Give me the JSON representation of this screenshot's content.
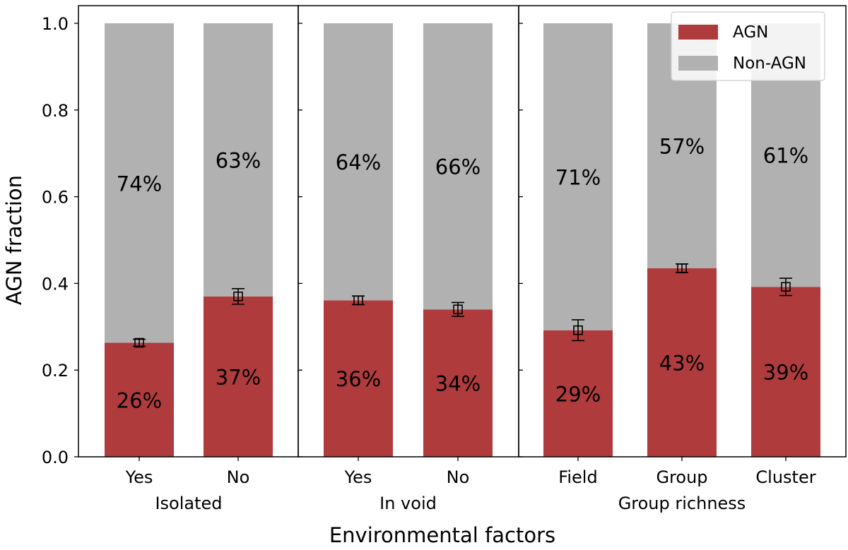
{
  "chart_data": {
    "type": "bar",
    "stacked": true,
    "ylabel": "AGN fraction",
    "xlabel": "Environmental factors",
    "ylim": [
      0,
      1
    ],
    "yticks": [
      "0.0",
      "0.2",
      "0.4",
      "0.6",
      "0.8",
      "1.0"
    ],
    "legend": {
      "position": "top-right",
      "entries": [
        {
          "label": "AGN",
          "color": "#b03b3d"
        },
        {
          "label": "Non-AGN",
          "color": "#b1b1b1"
        }
      ]
    },
    "panels": [
      {
        "group_label": "Isolated",
        "bars": [
          {
            "category": "Yes",
            "agn": 0.263,
            "agn_err": 0.008,
            "agn_label": "26%",
            "non_agn_label": "74%"
          },
          {
            "category": "No",
            "agn": 0.37,
            "agn_err": 0.018,
            "agn_label": "37%",
            "non_agn_label": "63%"
          }
        ]
      },
      {
        "group_label": "In void",
        "bars": [
          {
            "category": "Yes",
            "agn": 0.361,
            "agn_err": 0.01,
            "agn_label": "36%",
            "non_agn_label": "64%"
          },
          {
            "category": "No",
            "agn": 0.34,
            "agn_err": 0.016,
            "agn_label": "34%",
            "non_agn_label": "66%"
          }
        ]
      },
      {
        "group_label": "Group richness",
        "bars": [
          {
            "category": "Field",
            "agn": 0.292,
            "agn_err": 0.024,
            "agn_label": "29%",
            "non_agn_label": "71%"
          },
          {
            "category": "Group",
            "agn": 0.435,
            "agn_err": 0.01,
            "agn_label": "43%",
            "non_agn_label": "57%"
          },
          {
            "category": "Cluster",
            "agn": 0.392,
            "agn_err": 0.02,
            "agn_label": "39%",
            "non_agn_label": "61%"
          }
        ]
      }
    ]
  }
}
